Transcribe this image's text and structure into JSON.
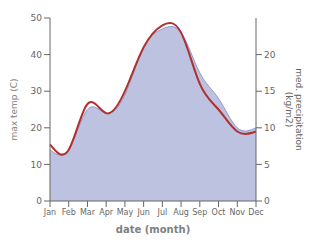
{
  "chart_data": {
    "type": "line",
    "categories": [
      "Jan",
      "Feb",
      "Mar",
      "Apr",
      "May",
      "Jun",
      "Jul",
      "Aug",
      "Sep",
      "Oct",
      "Nov",
      "Dec"
    ],
    "xlabel": "date (month)",
    "ylabel": "max temp (C)",
    "y2label": "med. precipitation\n(kg/m2)",
    "ylim": [
      0,
      50
    ],
    "yticks": [
      0,
      10,
      20,
      30,
      40,
      50
    ],
    "y2lim": [
      0,
      25
    ],
    "y2ticks": [
      0,
      5,
      10,
      15,
      20
    ],
    "grid": false,
    "series": [
      {
        "type": "area",
        "axis": "y2",
        "color": "#9099cc",
        "values": [
          7.0,
          7.0,
          12.5,
          12.0,
          14.5,
          21.0,
          23.5,
          23.0,
          17.5,
          14.0,
          10.0,
          10.0
        ]
      },
      {
        "type": "line",
        "axis": "y",
        "color": "#b03030",
        "values": [
          15.5,
          14.0,
          26.5,
          24.0,
          30.0,
          42.0,
          48.0,
          46.0,
          32.0,
          25.0,
          19.0,
          19.0
        ]
      }
    ]
  }
}
